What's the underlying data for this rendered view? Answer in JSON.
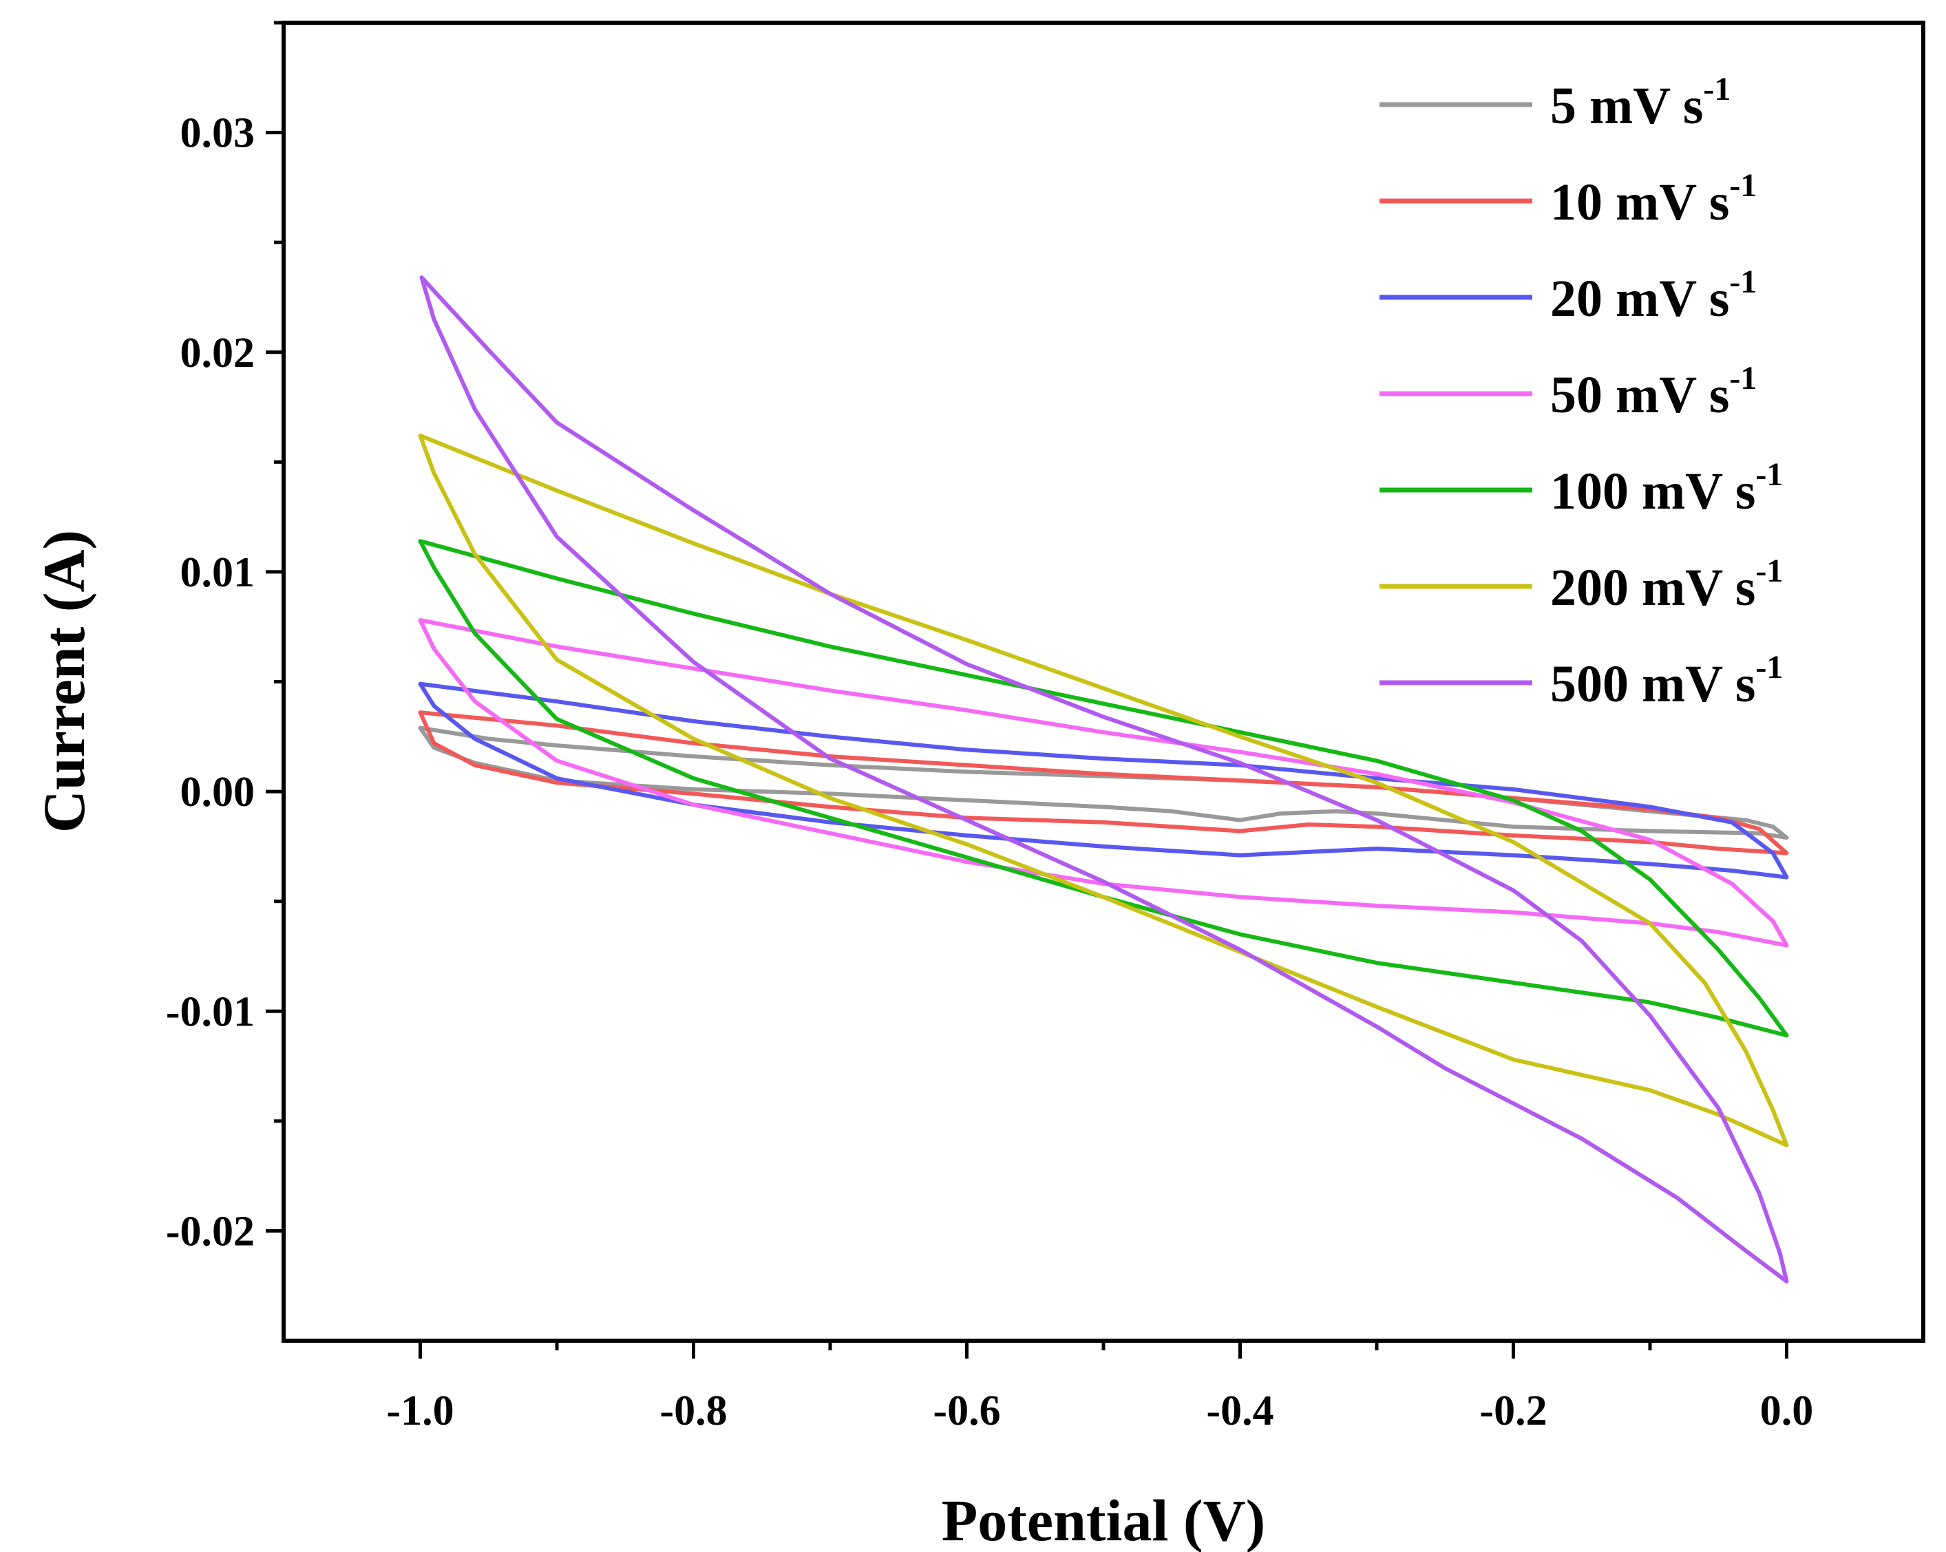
{
  "chart_data": {
    "type": "line",
    "title": "",
    "xlabel": "Potential (V)",
    "ylabel": "Current (A)",
    "xlim": [
      -1.1,
      0.1
    ],
    "ylim": [
      -0.025,
      0.035
    ],
    "x_ticks": [
      -1.0,
      -0.8,
      -0.6,
      -0.4,
      -0.2,
      0.0
    ],
    "x_tick_labels": [
      "-1.0",
      "-0.8",
      "-0.6",
      "-0.4",
      "-0.2",
      "0.0"
    ],
    "y_ticks": [
      -0.02,
      -0.01,
      0.0,
      0.01,
      0.02,
      0.03
    ],
    "y_tick_labels": [
      "-0.02",
      "-0.01",
      "0.00",
      "0.01",
      "0.02",
      "0.03"
    ],
    "grid": false,
    "legend_position": "top-right",
    "series": [
      {
        "name": "5 mV s",
        "unit_exp": "-1",
        "color": "#999999",
        "points": [
          [
            -1.0,
            0.0029
          ],
          [
            -0.95,
            0.0024
          ],
          [
            -0.9,
            0.0021
          ],
          [
            -0.8,
            0.0016
          ],
          [
            -0.7,
            0.0012
          ],
          [
            -0.6,
            0.0009
          ],
          [
            -0.5,
            0.0007
          ],
          [
            -0.4,
            0.0005
          ],
          [
            -0.3,
            0.0002
          ],
          [
            -0.2,
            -0.0003
          ],
          [
            -0.1,
            -0.0009
          ],
          [
            -0.03,
            -0.0013
          ],
          [
            -0.01,
            -0.0016
          ],
          [
            0.0,
            -0.0021
          ],
          [
            -0.02,
            -0.0019
          ],
          [
            -0.1,
            -0.0018
          ],
          [
            -0.2,
            -0.0016
          ],
          [
            -0.3,
            -0.001
          ],
          [
            -0.33,
            -0.0009
          ],
          [
            -0.37,
            -0.001
          ],
          [
            -0.4,
            -0.0013
          ],
          [
            -0.45,
            -0.0009
          ],
          [
            -0.5,
            -0.0007
          ],
          [
            -0.6,
            -0.0004
          ],
          [
            -0.7,
            -0.0001
          ],
          [
            -0.8,
            0.0001
          ],
          [
            -0.9,
            0.0005
          ],
          [
            -0.96,
            0.0013
          ],
          [
            -0.99,
            0.002
          ],
          [
            -1.0,
            0.0029
          ]
        ]
      },
      {
        "name": "10 mV s",
        "unit_exp": "-1",
        "color": "#f25858",
        "points": [
          [
            -1.0,
            0.0036
          ],
          [
            -0.9,
            0.003
          ],
          [
            -0.8,
            0.0022
          ],
          [
            -0.7,
            0.0016
          ],
          [
            -0.6,
            0.0012
          ],
          [
            -0.5,
            0.0008
          ],
          [
            -0.4,
            0.0005
          ],
          [
            -0.3,
            0.0002
          ],
          [
            -0.2,
            -0.0003
          ],
          [
            -0.1,
            -0.0008
          ],
          [
            -0.05,
            -0.0012
          ],
          [
            -0.02,
            -0.0017
          ],
          [
            0.0,
            -0.0028
          ],
          [
            -0.05,
            -0.0026
          ],
          [
            -0.1,
            -0.0023
          ],
          [
            -0.2,
            -0.002
          ],
          [
            -0.3,
            -0.0016
          ],
          [
            -0.35,
            -0.0015
          ],
          [
            -0.4,
            -0.0018
          ],
          [
            -0.5,
            -0.0014
          ],
          [
            -0.6,
            -0.0012
          ],
          [
            -0.7,
            -0.0007
          ],
          [
            -0.8,
            -0.0001
          ],
          [
            -0.9,
            0.0004
          ],
          [
            -0.96,
            0.0012
          ],
          [
            -0.99,
            0.0022
          ],
          [
            -1.0,
            0.0036
          ]
        ]
      },
      {
        "name": "20 mV s",
        "unit_exp": "-1",
        "color": "#5858f0",
        "points": [
          [
            -1.0,
            0.0049
          ],
          [
            -0.9,
            0.0041
          ],
          [
            -0.8,
            0.0032
          ],
          [
            -0.7,
            0.0025
          ],
          [
            -0.6,
            0.0019
          ],
          [
            -0.5,
            0.0015
          ],
          [
            -0.4,
            0.0012
          ],
          [
            -0.3,
            0.0006
          ],
          [
            -0.2,
            0.0001
          ],
          [
            -0.1,
            -0.0007
          ],
          [
            -0.04,
            -0.0014
          ],
          [
            -0.01,
            -0.0028
          ],
          [
            0.0,
            -0.0039
          ],
          [
            -0.04,
            -0.0036
          ],
          [
            -0.1,
            -0.0033
          ],
          [
            -0.2,
            -0.0029
          ],
          [
            -0.3,
            -0.0026
          ],
          [
            -0.4,
            -0.0029
          ],
          [
            -0.5,
            -0.0025
          ],
          [
            -0.6,
            -0.002
          ],
          [
            -0.7,
            -0.0014
          ],
          [
            -0.8,
            -0.0006
          ],
          [
            -0.9,
            0.0006
          ],
          [
            -0.96,
            0.0024
          ],
          [
            -0.99,
            0.0039
          ],
          [
            -1.0,
            0.0049
          ]
        ]
      },
      {
        "name": "50 mV s",
        "unit_exp": "-1",
        "color": "#f56af5",
        "points": [
          [
            -1.0,
            0.0078
          ],
          [
            -0.9,
            0.0066
          ],
          [
            -0.8,
            0.0056
          ],
          [
            -0.7,
            0.0046
          ],
          [
            -0.6,
            0.0037
          ],
          [
            -0.5,
            0.0027
          ],
          [
            -0.4,
            0.0018
          ],
          [
            -0.3,
            0.0008
          ],
          [
            -0.2,
            -0.0005
          ],
          [
            -0.1,
            -0.0022
          ],
          [
            -0.04,
            -0.0042
          ],
          [
            -0.01,
            -0.0059
          ],
          [
            0.0,
            -0.007
          ],
          [
            -0.05,
            -0.0064
          ],
          [
            -0.1,
            -0.006
          ],
          [
            -0.2,
            -0.0055
          ],
          [
            -0.3,
            -0.0052
          ],
          [
            -0.4,
            -0.0048
          ],
          [
            -0.5,
            -0.0042
          ],
          [
            -0.6,
            -0.0032
          ],
          [
            -0.7,
            -0.0019
          ],
          [
            -0.8,
            -0.0006
          ],
          [
            -0.9,
            0.0014
          ],
          [
            -0.96,
            0.0041
          ],
          [
            -0.99,
            0.0065
          ],
          [
            -1.0,
            0.0078
          ]
        ]
      },
      {
        "name": "100 mV s",
        "unit_exp": "-1",
        "color": "#15b815",
        "points": [
          [
            -1.0,
            0.0114
          ],
          [
            -0.9,
            0.0097
          ],
          [
            -0.8,
            0.0081
          ],
          [
            -0.7,
            0.0066
          ],
          [
            -0.6,
            0.0053
          ],
          [
            -0.5,
            0.004
          ],
          [
            -0.4,
            0.0027
          ],
          [
            -0.3,
            0.0014
          ],
          [
            -0.2,
            -0.0004
          ],
          [
            -0.15,
            -0.0018
          ],
          [
            -0.1,
            -0.004
          ],
          [
            -0.05,
            -0.0072
          ],
          [
            -0.02,
            -0.0094
          ],
          [
            0.0,
            -0.0111
          ],
          [
            -0.05,
            -0.0103
          ],
          [
            -0.1,
            -0.0096
          ],
          [
            -0.2,
            -0.0087
          ],
          [
            -0.3,
            -0.0078
          ],
          [
            -0.4,
            -0.0065
          ],
          [
            -0.5,
            -0.0048
          ],
          [
            -0.6,
            -0.003
          ],
          [
            -0.7,
            -0.0012
          ],
          [
            -0.8,
            0.0006
          ],
          [
            -0.9,
            0.0033
          ],
          [
            -0.96,
            0.0072
          ],
          [
            -0.99,
            0.0102
          ],
          [
            -1.0,
            0.0114
          ]
        ]
      },
      {
        "name": "200 mV s",
        "unit_exp": "-1",
        "color": "#c9c214",
        "points": [
          [
            -1.0,
            0.0162
          ],
          [
            -0.9,
            0.0137
          ],
          [
            -0.8,
            0.0113
          ],
          [
            -0.7,
            0.009
          ],
          [
            -0.6,
            0.0069
          ],
          [
            -0.5,
            0.0047
          ],
          [
            -0.4,
            0.0025
          ],
          [
            -0.3,
            0.0004
          ],
          [
            -0.2,
            -0.0023
          ],
          [
            -0.1,
            -0.006
          ],
          [
            -0.06,
            -0.0087
          ],
          [
            -0.03,
            -0.0118
          ],
          [
            -0.01,
            -0.0145
          ],
          [
            0.0,
            -0.0161
          ],
          [
            -0.05,
            -0.0147
          ],
          [
            -0.1,
            -0.0136
          ],
          [
            -0.2,
            -0.0122
          ],
          [
            -0.3,
            -0.0098
          ],
          [
            -0.4,
            -0.0073
          ],
          [
            -0.5,
            -0.0048
          ],
          [
            -0.6,
            -0.0024
          ],
          [
            -0.7,
            -0.0003
          ],
          [
            -0.8,
            0.0024
          ],
          [
            -0.9,
            0.006
          ],
          [
            -0.96,
            0.0108
          ],
          [
            -0.99,
            0.0145
          ],
          [
            -1.0,
            0.0162
          ]
        ]
      },
      {
        "name": "500 mV s",
        "unit_exp": "-1",
        "color": "#b05af0",
        "points": [
          [
            -0.999,
            0.0234
          ],
          [
            -0.95,
            0.0201
          ],
          [
            -0.9,
            0.0168
          ],
          [
            -0.8,
            0.0128
          ],
          [
            -0.7,
            0.009
          ],
          [
            -0.6,
            0.0058
          ],
          [
            -0.5,
            0.0034
          ],
          [
            -0.4,
            0.0013
          ],
          [
            -0.3,
            -0.0013
          ],
          [
            -0.2,
            -0.0045
          ],
          [
            -0.15,
            -0.0068
          ],
          [
            -0.1,
            -0.0102
          ],
          [
            -0.05,
            -0.0144
          ],
          [
            -0.02,
            -0.0183
          ],
          [
            -0.005,
            -0.021
          ],
          [
            0.0,
            -0.0223
          ],
          [
            -0.03,
            -0.0209
          ],
          [
            -0.08,
            -0.0185
          ],
          [
            -0.15,
            -0.0158
          ],
          [
            -0.25,
            -0.0126
          ],
          [
            -0.3,
            -0.0107
          ],
          [
            -0.4,
            -0.0072
          ],
          [
            -0.5,
            -0.0041
          ],
          [
            -0.6,
            -0.0013
          ],
          [
            -0.7,
            0.0015
          ],
          [
            -0.8,
            0.0059
          ],
          [
            -0.9,
            0.0116
          ],
          [
            -0.96,
            0.0174
          ],
          [
            -0.99,
            0.0215
          ],
          [
            -0.999,
            0.0234
          ]
        ]
      }
    ]
  }
}
